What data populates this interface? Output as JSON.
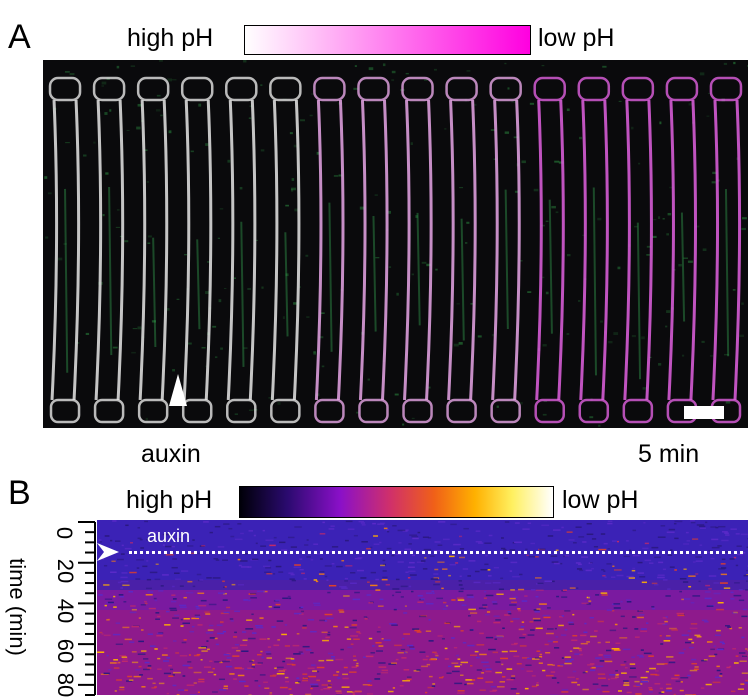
{
  "panel_a": {
    "letter": "A",
    "colorbar": {
      "left_label": "high pH",
      "right_label": "low pH",
      "gradient": [
        "#ffffff",
        "#ff00e0"
      ]
    },
    "stimulus_label": "auxin",
    "time_label": "5 min"
  },
  "panel_b": {
    "letter": "B",
    "colorbar": {
      "left_label": "high pH",
      "right_label": "low pH",
      "gradient": [
        "#000008",
        "#2a0a6e",
        "#8a10c8",
        "#d0306a",
        "#f06018",
        "#ffb000",
        "#fff060",
        "#ffffff"
      ]
    },
    "stimulus_label": "auxin",
    "axis": {
      "label": "time (min)",
      "ticks": [
        "0",
        "20",
        "40",
        "60",
        "80"
      ]
    }
  },
  "colors": {
    "membrane_white": "#e8e8e8",
    "membrane_magenta": "#e060e0",
    "cytoplasm_green": "#40c060",
    "kymo_base": "#3d20b8"
  }
}
